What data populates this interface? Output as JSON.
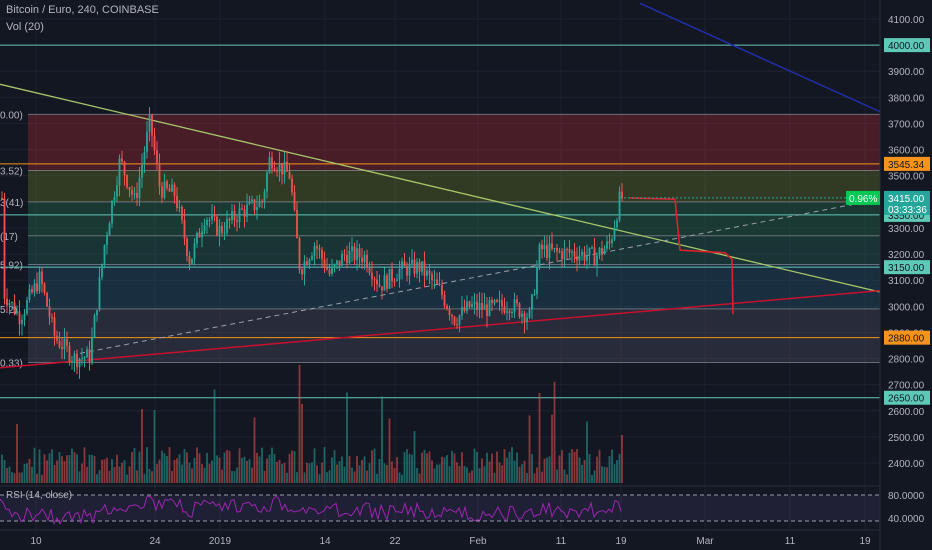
{
  "header": {
    "symbol_line": "Bitcoin / Euro, 240, COINBASE",
    "volume_label": "Vol (20)"
  },
  "chart_data": {
    "type": "candlestick",
    "symbol": "Bitcoin / Euro",
    "interval": "240",
    "exchange": "COINBASE",
    "price_axis": {
      "ticks": [
        "4100.00",
        "4000.00",
        "3900.00",
        "3800.00",
        "3700.00",
        "3600.00",
        "3500.00",
        "3400.00",
        "3300.00",
        "3200.00",
        "3100.00",
        "3000.00",
        "2900.00",
        "2800.00",
        "2700.00",
        "2600.00",
        "2500.00",
        "2400.00"
      ],
      "ylim": [
        2360,
        4150
      ]
    },
    "date_axis": {
      "ticks": [
        "10",
        "24",
        "2019",
        "14",
        "22",
        "Feb",
        "11",
        "19",
        "Mar",
        "11",
        "19"
      ]
    },
    "fib_levels": [
      {
        "label": "0.00)",
        "price": 3735
      },
      {
        "label": "3.52)",
        "price": 3520
      },
      {
        "label": "3(41)",
        "price": 3400
      },
      {
        "label": "(17)",
        "price": 3270
      },
      {
        "label": "5.92)",
        "price": 3160
      },
      {
        "label": "5.2)",
        "price": 2990
      },
      {
        "label": "0.33)",
        "price": 2785
      }
    ],
    "horizontal_levels": [
      {
        "price": 4000.0,
        "label": "4000.00",
        "color": "#5fc9b8",
        "text_color": "#131722"
      },
      {
        "price": 3545.34,
        "label": "3545.34",
        "color": "#f7931a",
        "text_color": "#131722"
      },
      {
        "price": 3350.0,
        "label": "3350.00",
        "color": "#5fc9b8",
        "text_color": "#131722"
      },
      {
        "price": 3150.0,
        "label": "3150.00",
        "color": "#5fc9b8",
        "text_color": "#131722"
      },
      {
        "price": 2880.0,
        "label": "2880.00",
        "color": "#f7931a",
        "text_color": "#131722"
      },
      {
        "price": 2650.0,
        "label": "2650.00",
        "color": "#5fc9b8",
        "text_color": "#131722"
      }
    ],
    "current_price": {
      "price": 3415.0,
      "label": "3415.00",
      "countdown": "03:33:36",
      "change": "0.96%"
    },
    "rsi": {
      "label": "RSI (14, close)",
      "ticks": [
        "80.0000",
        "40.0000"
      ]
    }
  }
}
